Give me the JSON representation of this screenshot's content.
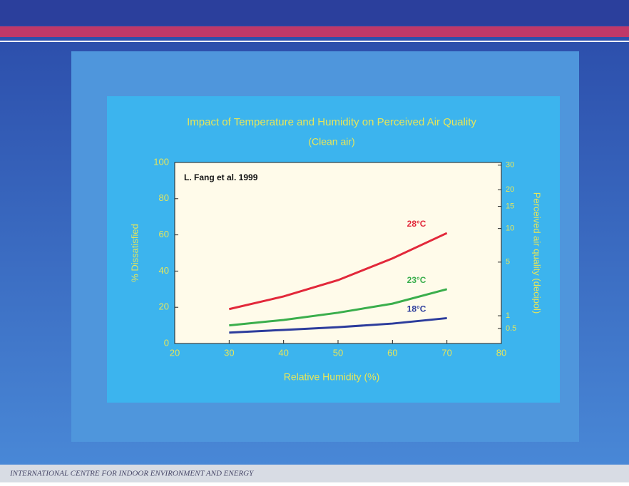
{
  "chart_data": {
    "type": "line",
    "title": "Impact of Temperature and Humidity on Perceived Air Quality",
    "subtitle": "(Clean air)",
    "annotation": "L. Fang et al. 1999",
    "x_label": "Relative Humidity (%)",
    "y_label": "% Dissatisfied",
    "y2_label": "Perceived air quality (decipol)",
    "x": [
      30,
      40,
      50,
      60,
      70
    ],
    "series": [
      {
        "name": "28°C",
        "color": "#e2283a",
        "values": [
          19,
          26,
          35,
          47,
          61
        ]
      },
      {
        "name": "23°C",
        "color": "#3aae4c",
        "values": [
          10,
          13,
          17,
          22,
          30
        ]
      },
      {
        "name": "18°C",
        "color": "#2c3c9c",
        "values": [
          6,
          7.5,
          9,
          11,
          14
        ]
      }
    ],
    "xlim": [
      20,
      80
    ],
    "xticks": [
      20,
      30,
      40,
      50,
      60,
      70,
      80
    ],
    "ylim": [
      0,
      100
    ],
    "yticks": [
      0,
      20,
      40,
      60,
      80,
      100
    ],
    "y2scale": "decipol",
    "y2ticks": [
      30,
      20,
      15,
      10,
      5,
      1,
      0.5
    ],
    "footer": "INTERNATIONAL CENTRE FOR INDOOR ENVIRONMENT AND ENERGY"
  }
}
